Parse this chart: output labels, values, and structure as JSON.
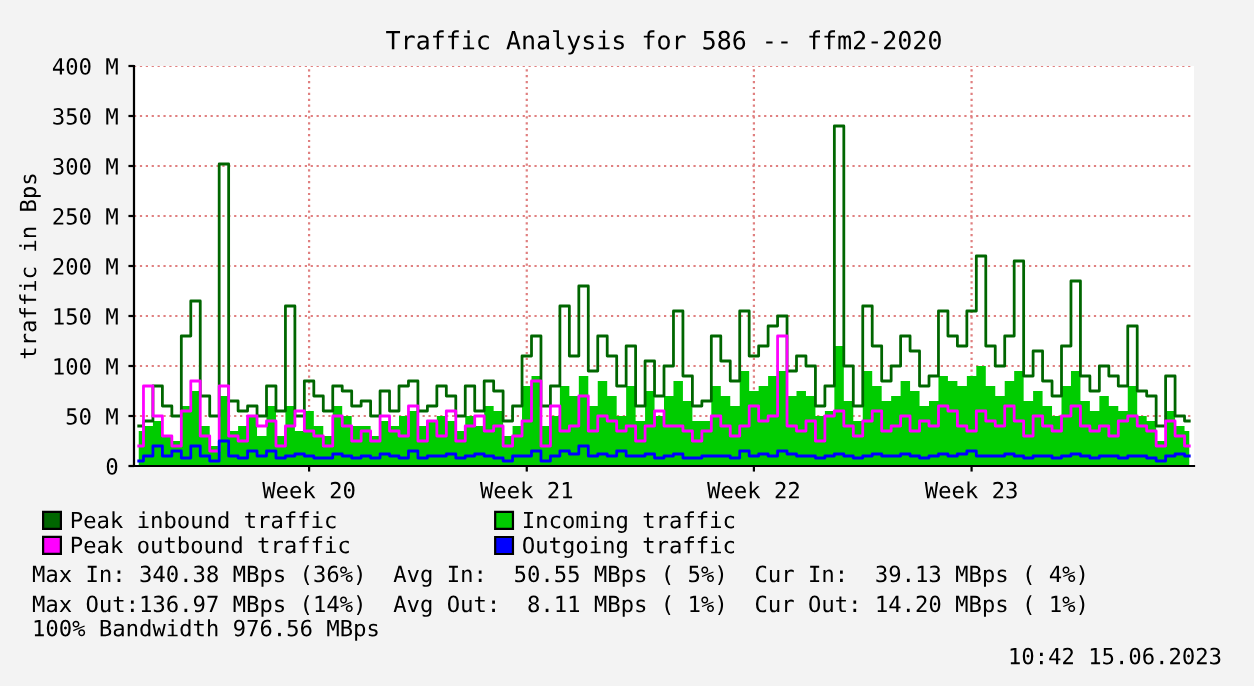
{
  "chart_data": {
    "type": "step",
    "title": "Traffic Analysis for 586 -- ffm2-2020",
    "ylabel": "traffic in Bps",
    "categories": [
      null,
      null,
      null,
      null,
      null,
      null,
      null,
      null,
      null,
      null,
      null,
      null,
      null,
      null,
      null,
      null,
      null,
      null,
      "Week 20",
      null,
      null,
      null,
      null,
      null,
      null,
      null,
      null,
      null,
      null,
      null,
      null,
      null,
      null,
      null,
      null,
      null,
      null,
      null,
      null,
      null,
      null,
      "Week 21",
      null,
      null,
      null,
      null,
      null,
      null,
      null,
      null,
      null,
      null,
      null,
      null,
      null,
      null,
      null,
      null,
      null,
      null,
      null,
      null,
      null,
      null,
      null,
      "Week 22",
      null,
      null,
      null,
      null,
      null,
      null,
      null,
      null,
      null,
      null,
      null,
      null,
      null,
      null,
      null,
      null,
      null,
      null,
      null,
      null,
      null,
      null,
      "Week 23",
      null,
      null,
      null,
      null,
      null,
      null,
      null,
      null,
      null,
      null,
      null,
      null,
      null,
      null,
      null,
      null,
      null,
      null,
      null,
      null,
      null,
      null,
      null
    ],
    "series": [
      {
        "name": "Incoming traffic",
        "type": "area",
        "color": "#00cc00",
        "values": [
          35,
          40,
          45,
          30,
          25,
          60,
          75,
          40,
          20,
          70,
          35,
          40,
          50,
          30,
          60,
          30,
          60,
          35,
          55,
          40,
          30,
          60,
          50,
          40,
          40,
          30,
          45,
          40,
          50,
          55,
          40,
          45,
          50,
          45,
          35,
          50,
          40,
          60,
          55,
          30,
          40,
          80,
          90,
          40,
          50,
          80,
          70,
          90,
          60,
          85,
          70,
          50,
          80,
          45,
          75,
          50,
          70,
          85,
          65,
          45,
          45,
          80,
          70,
          60,
          95,
          75,
          80,
          90,
          95,
          70,
          75,
          70,
          50,
          55,
          120,
          65,
          45,
          95,
          80,
          65,
          70,
          85,
          75,
          60,
          65,
          90,
          85,
          80,
          90,
          100,
          80,
          70,
          85,
          95,
          65,
          75,
          60,
          50,
          80,
          95,
          65,
          55,
          70,
          60,
          55,
          80,
          50,
          45,
          25,
          55,
          40,
          35
        ]
      },
      {
        "name": "Peak inbound traffic",
        "color": "#006600",
        "values": [
          40,
          45,
          80,
          60,
          50,
          130,
          165,
          70,
          50,
          302,
          65,
          55,
          60,
          50,
          80,
          55,
          160,
          50,
          85,
          70,
          55,
          80,
          75,
          60,
          65,
          50,
          75,
          55,
          80,
          85,
          55,
          60,
          80,
          70,
          50,
          80,
          55,
          85,
          75,
          45,
          60,
          110,
          130,
          60,
          80,
          160,
          110,
          180,
          95,
          130,
          110,
          80,
          120,
          60,
          105,
          70,
          100,
          155,
          90,
          60,
          65,
          130,
          105,
          85,
          155,
          110,
          120,
          140,
          150,
          95,
          110,
          100,
          60,
          80,
          340,
          100,
          60,
          160,
          120,
          85,
          100,
          130,
          115,
          80,
          90,
          155,
          130,
          120,
          155,
          210,
          120,
          100,
          130,
          205,
          90,
          115,
          85,
          70,
          120,
          185,
          90,
          75,
          100,
          90,
          80,
          140,
          75,
          70,
          40,
          90,
          50,
          45
        ]
      },
      {
        "name": "Peak outbound traffic",
        "color": "#ff00ff",
        "values": [
          20,
          80,
          50,
          30,
          20,
          55,
          85,
          30,
          15,
          80,
          30,
          25,
          50,
          40,
          45,
          20,
          40,
          55,
          35,
          30,
          20,
          50,
          40,
          25,
          35,
          25,
          50,
          35,
          30,
          60,
          25,
          45,
          30,
          55,
          25,
          40,
          50,
          35,
          40,
          20,
          30,
          45,
          85,
          20,
          60,
          35,
          40,
          70,
          35,
          50,
          45,
          35,
          40,
          25,
          40,
          55,
          40,
          40,
          35,
          25,
          35,
          50,
          40,
          30,
          40,
          60,
          45,
          50,
          130,
          40,
          35,
          45,
          25,
          50,
          55,
          40,
          30,
          45,
          55,
          35,
          40,
          50,
          35,
          45,
          40,
          60,
          55,
          40,
          35,
          55,
          45,
          40,
          60,
          45,
          30,
          50,
          40,
          35,
          50,
          60,
          40,
          35,
          40,
          30,
          45,
          50,
          40,
          35,
          20,
          45,
          30,
          20
        ]
      },
      {
        "name": "Outgoing traffic",
        "color": "#0000ff",
        "values": [
          5,
          10,
          20,
          10,
          15,
          8,
          20,
          10,
          5,
          25,
          10,
          8,
          15,
          10,
          15,
          8,
          10,
          12,
          10,
          8,
          8,
          12,
          10,
          8,
          10,
          8,
          12,
          10,
          8,
          15,
          8,
          10,
          10,
          12,
          8,
          10,
          12,
          10,
          8,
          5,
          10,
          10,
          15,
          5,
          10,
          15,
          12,
          20,
          10,
          12,
          10,
          15,
          10,
          10,
          12,
          8,
          10,
          12,
          8,
          8,
          10,
          10,
          10,
          8,
          15,
          10,
          12,
          10,
          15,
          12,
          10,
          10,
          8,
          10,
          12,
          10,
          8,
          10,
          12,
          10,
          10,
          12,
          10,
          8,
          10,
          12,
          10,
          12,
          15,
          10,
          10,
          10,
          12,
          10,
          8,
          10,
          10,
          8,
          10,
          12,
          10,
          8,
          10,
          10,
          8,
          10,
          10,
          8,
          5,
          10,
          12,
          10
        ]
      }
    ],
    "ylim": [
      0,
      400
    ],
    "yticks": [
      0,
      {
        "value": 50,
        "label": "50 M"
      },
      {
        "value": 100,
        "label": "100 M"
      },
      {
        "value": 150,
        "label": "150 M"
      },
      {
        "value": 200,
        "label": "200 M"
      },
      {
        "value": 250,
        "label": "250 M"
      },
      {
        "value": 300,
        "label": "300 M"
      },
      {
        "value": 350,
        "label": "350 M"
      },
      {
        "value": 400,
        "label": "400 M"
      }
    ],
    "grid": true,
    "legend": "bottom",
    "annotations": [
      "Max In: 340.38 MBps (36%)  Avg In:  50.55 MBps ( 5%)  Cur In:  39.13 MBps ( 4%)",
      "Max Out:136.97 MBps (14%)  Avg Out:  8.11 MBps ( 1%)  Cur Out: 14.20 MBps ( 1%)",
      "100% Bandwidth 976.56 MBps",
      "10:42 15.06.2023"
    ]
  }
}
